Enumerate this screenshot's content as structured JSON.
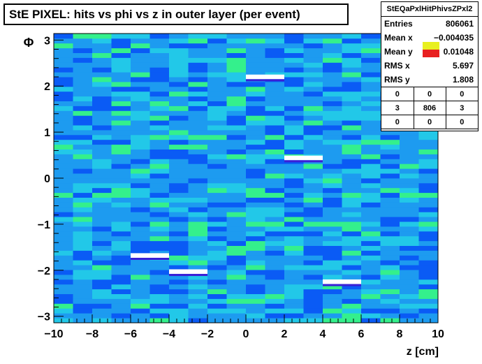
{
  "title": "StE PIXEL: hits vs phi vs z in outer layer (per event)",
  "stats": {
    "name": "StEQaPxlHitPhivsZPxl2",
    "rows": [
      {
        "label": "Entries",
        "value": "806061"
      },
      {
        "label": "Mean x",
        "value": "−0.004035"
      },
      {
        "label": "Mean y",
        "value": "0.01048"
      },
      {
        "label": "RMS x",
        "value": "5.697"
      },
      {
        "label": "RMS y",
        "value": "1.808"
      }
    ],
    "grid": [
      [
        "0",
        "0",
        "0"
      ],
      [
        "3",
        "806",
        "3"
      ],
      [
        "0",
        "0",
        "0"
      ]
    ]
  },
  "colors": {
    "low": "#3a1fd6",
    "mid_low": "#0a5bf5",
    "mid": "#1d9bf0",
    "mid_high": "#22c8e8",
    "high": "#34f08c",
    "peak": "#ffffff",
    "palette_top": "#e8f020",
    "palette_bottom": "#e82020"
  },
  "chart_data": {
    "type": "heatmap",
    "xlabel": "z [cm]",
    "ylabel": "Φ",
    "xlim": [
      -10,
      10
    ],
    "ylim": [
      -3.14159,
      3.14159
    ],
    "x_ticks": [
      "−10",
      "−8",
      "−6",
      "−4",
      "−2",
      "0",
      "2",
      "4",
      "6",
      "8",
      "10"
    ],
    "y_ticks": [
      "−3",
      "−2",
      "−1",
      "0",
      "1",
      "2",
      "3"
    ],
    "x_bins": 20,
    "y_bins": 60,
    "relative_density_levels": [
      "low",
      "mid_low",
      "mid",
      "mid_high",
      "high",
      "peak"
    ],
    "notable_cells": [
      {
        "x": [
          0,
          2
        ],
        "y": [
          2.15,
          2.25
        ],
        "level": "peak"
      },
      {
        "x": [
          2,
          4
        ],
        "y": [
          0.39,
          0.49
        ],
        "level": "peak"
      },
      {
        "x": [
          -6,
          -4
        ],
        "y": [
          -1.73,
          -1.63
        ],
        "level": "peak"
      },
      {
        "x": [
          -4,
          -2
        ],
        "y": [
          -2.08,
          -1.98
        ],
        "level": "peak"
      },
      {
        "x": [
          4,
          6
        ],
        "y": [
          -2.3,
          -2.2
        ],
        "level": "peak"
      }
    ]
  }
}
